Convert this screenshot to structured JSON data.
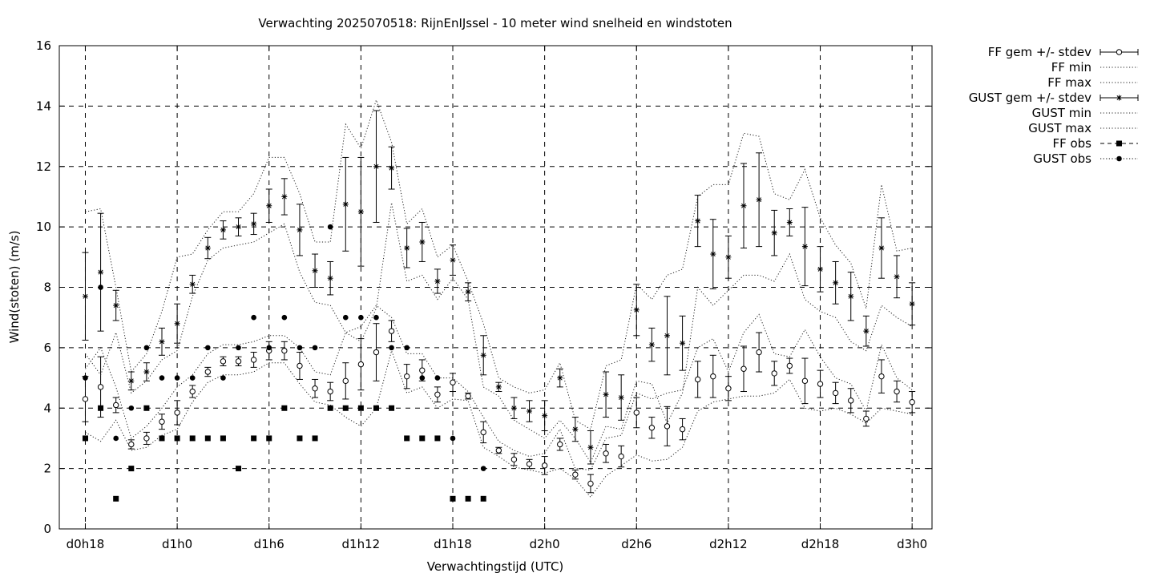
{
  "chart_data": {
    "type": "line",
    "title": "Verwachting 2025070518: RijnEnIJssel - 10 meter wind snelheid en windstoten",
    "xlabel": "Verwachtingstijd (UTC)",
    "ylabel": "Wind(stoten) (m/s)",
    "ylim": [
      0,
      16
    ],
    "yticks": [
      "0",
      "2",
      "4",
      "6",
      "8",
      "10",
      "12",
      "14",
      "16"
    ],
    "xlim": [
      -1.7,
      55.3
    ],
    "xticks": [
      {
        "x": 0,
        "label": "d0h18"
      },
      {
        "x": 6,
        "label": "d1h0"
      },
      {
        "x": 12,
        "label": "d1h6"
      },
      {
        "x": 18,
        "label": "d1h12"
      },
      {
        "x": 24,
        "label": "d1h18"
      },
      {
        "x": 30,
        "label": "d2h0"
      },
      {
        "x": 36,
        "label": "d2h6"
      },
      {
        "x": 42,
        "label": "d2h12"
      },
      {
        "x": 48,
        "label": "d2h18"
      },
      {
        "x": 54,
        "label": "d3h0"
      }
    ],
    "grid": true,
    "legend_position": "outside-right",
    "series": [
      {
        "name": "FF gem +/- stdev",
        "x": [
          0,
          1,
          2,
          3,
          4,
          5,
          6,
          7,
          8,
          9,
          10,
          11,
          12,
          13,
          14,
          15,
          16,
          17,
          18,
          19,
          20,
          21,
          22,
          23,
          24,
          25,
          26,
          27,
          28,
          29,
          30,
          31,
          32,
          33,
          34,
          35,
          36,
          37,
          38,
          39,
          40,
          41,
          42,
          43,
          44,
          45,
          46,
          47,
          48,
          49,
          50,
          51,
          52,
          53,
          54
        ],
        "y": [
          4.3,
          4.7,
          4.1,
          2.8,
          3.0,
          3.55,
          3.85,
          4.55,
          5.2,
          5.55,
          5.55,
          5.6,
          5.9,
          5.9,
          5.4,
          4.65,
          4.55,
          4.9,
          5.45,
          5.85,
          6.55,
          5.05,
          5.25,
          4.45,
          4.85,
          4.4,
          3.2,
          2.6,
          2.3,
          2.15,
          2.1,
          2.8,
          1.8,
          1.5,
          2.5,
          2.4,
          3.85,
          3.35,
          3.4,
          3.3,
          4.95,
          5.05,
          4.65,
          5.3,
          5.85,
          5.15,
          5.4,
          4.9,
          4.8,
          4.5,
          4.25,
          3.65,
          5.05,
          4.55,
          4.2
        ],
        "stdev": [
          0.75,
          1.0,
          0.25,
          0.15,
          0.2,
          0.25,
          0.4,
          0.2,
          0.15,
          0.15,
          0.15,
          0.25,
          0.3,
          0.3,
          0.45,
          0.3,
          0.3,
          0.6,
          0.85,
          0.95,
          0.35,
          0.4,
          0.35,
          0.25,
          0.3,
          0.1,
          0.35,
          0.1,
          0.2,
          0.15,
          0.3,
          0.2,
          0.15,
          0.3,
          0.3,
          0.35,
          0.5,
          0.35,
          0.65,
          0.35,
          0.6,
          0.7,
          0.4,
          0.75,
          0.65,
          0.4,
          0.25,
          0.75,
          0.45,
          0.35,
          0.4,
          0.25,
          0.55,
          0.35,
          0.35
        ],
        "marker": "open-circle"
      },
      {
        "name": "FF min",
        "x": [
          0,
          1,
          2,
          3,
          4,
          5,
          6,
          7,
          8,
          9,
          10,
          11,
          12,
          13,
          14,
          15,
          16,
          17,
          18,
          19,
          20,
          21,
          22,
          23,
          24,
          25,
          26,
          27,
          28,
          29,
          30,
          31,
          32,
          33,
          34,
          35,
          36,
          37,
          38,
          39,
          40,
          41,
          42,
          43,
          44,
          45,
          46,
          47,
          48,
          49,
          50,
          51,
          52,
          53,
          54
        ],
        "y": [
          3.2,
          2.9,
          3.6,
          2.6,
          2.7,
          3.1,
          3.3,
          4.2,
          4.85,
          5.1,
          5.1,
          5.2,
          5.5,
          5.5,
          4.8,
          4.2,
          4.1,
          3.7,
          3.4,
          4.0,
          5.9,
          4.5,
          4.7,
          4.0,
          4.3,
          4.25,
          2.7,
          2.4,
          2.05,
          1.95,
          1.85,
          2.0,
          1.65,
          1.05,
          1.75,
          2.1,
          2.45,
          2.25,
          2.3,
          2.7,
          3.9,
          4.2,
          4.3,
          4.4,
          4.4,
          4.5,
          4.95,
          4.0,
          3.9,
          4.0,
          3.8,
          3.5,
          4.0,
          3.9,
          3.8
        ],
        "style": "dotted"
      },
      {
        "name": "FF max",
        "x": [
          0,
          1,
          2,
          3,
          4,
          5,
          6,
          7,
          8,
          9,
          10,
          11,
          12,
          13,
          14,
          15,
          16,
          17,
          18,
          19,
          20,
          21,
          22,
          23,
          24,
          25,
          26,
          27,
          28,
          29,
          30,
          31,
          32,
          33,
          34,
          35,
          36,
          37,
          38,
          39,
          40,
          41,
          42,
          43,
          44,
          45,
          46,
          47,
          48,
          49,
          50,
          51,
          52,
          53,
          54
        ],
        "y": [
          5.3,
          6.0,
          4.7,
          3.0,
          3.4,
          4.0,
          4.7,
          5.1,
          5.8,
          6.1,
          6.1,
          6.2,
          6.4,
          6.4,
          6.0,
          5.2,
          5.1,
          6.5,
          6.7,
          7.4,
          7.0,
          5.8,
          5.8,
          5.0,
          5.0,
          4.55,
          3.7,
          2.9,
          2.6,
          2.4,
          2.5,
          3.3,
          2.0,
          1.95,
          3.0,
          3.1,
          4.5,
          4.3,
          4.5,
          4.6,
          6.0,
          6.3,
          5.2,
          6.5,
          7.1,
          5.8,
          5.7,
          6.6,
          5.7,
          5.0,
          4.8,
          3.9,
          6.1,
          5.0,
          4.6
        ],
        "style": "dotted"
      },
      {
        "name": "GUST gem +/- stdev",
        "x": [
          0,
          1,
          2,
          3,
          4,
          5,
          6,
          7,
          8,
          9,
          10,
          11,
          12,
          13,
          14,
          15,
          16,
          17,
          18,
          19,
          20,
          21,
          22,
          23,
          24,
          25,
          26,
          27,
          28,
          29,
          30,
          31,
          32,
          33,
          34,
          35,
          36,
          37,
          38,
          39,
          40,
          41,
          42,
          43,
          44,
          45,
          46,
          47,
          48,
          49,
          50,
          51,
          52,
          53,
          54
        ],
        "y": [
          7.7,
          8.5,
          7.4,
          4.9,
          5.2,
          6.2,
          6.8,
          8.1,
          9.3,
          9.9,
          10.0,
          10.1,
          10.7,
          11.0,
          9.9,
          8.55,
          8.3,
          10.75,
          10.5,
          12.0,
          11.95,
          9.3,
          9.5,
          8.2,
          8.9,
          7.85,
          5.75,
          4.7,
          4.0,
          3.9,
          3.75,
          5.0,
          3.3,
          2.7,
          4.45,
          4.35,
          7.25,
          6.1,
          6.4,
          6.15,
          10.2,
          9.1,
          9.0,
          10.7,
          10.9,
          9.8,
          10.15,
          9.35,
          8.6,
          8.15,
          7.7,
          6.55,
          9.3,
          8.35,
          7.45
        ],
        "stdev": [
          1.45,
          1.95,
          0.5,
          0.3,
          0.3,
          0.45,
          0.65,
          0.3,
          0.35,
          0.3,
          0.3,
          0.35,
          0.55,
          0.6,
          0.85,
          0.55,
          0.55,
          1.55,
          1.8,
          1.85,
          0.7,
          0.65,
          0.65,
          0.4,
          0.5,
          0.3,
          0.65,
          0.15,
          0.35,
          0.35,
          0.5,
          0.3,
          0.4,
          0.55,
          0.75,
          0.75,
          0.85,
          0.55,
          1.3,
          0.9,
          0.85,
          1.15,
          0.7,
          1.4,
          1.55,
          0.75,
          0.45,
          1.3,
          0.75,
          0.7,
          0.8,
          0.5,
          1.0,
          0.7,
          0.7
        ],
        "marker": "star"
      },
      {
        "name": "GUST min",
        "x": [
          0,
          1,
          2,
          3,
          4,
          5,
          6,
          7,
          8,
          9,
          10,
          11,
          12,
          13,
          14,
          15,
          16,
          17,
          18,
          19,
          20,
          21,
          22,
          23,
          24,
          25,
          26,
          27,
          28,
          29,
          30,
          31,
          32,
          33,
          34,
          35,
          36,
          37,
          38,
          39,
          40,
          41,
          42,
          43,
          44,
          45,
          46,
          47,
          48,
          49,
          50,
          51,
          52,
          53,
          54
        ],
        "y": [
          5.8,
          5.1,
          6.5,
          4.5,
          4.9,
          5.6,
          5.9,
          7.7,
          8.9,
          9.3,
          9.4,
          9.5,
          9.8,
          10.1,
          8.5,
          7.5,
          7.4,
          6.5,
          6.2,
          7.3,
          10.8,
          8.2,
          8.4,
          7.6,
          8.3,
          7.6,
          4.7,
          4.4,
          3.6,
          3.3,
          3.0,
          3.6,
          3.0,
          2.2,
          3.4,
          3.3,
          4.9,
          4.8,
          3.5,
          4.5,
          8.0,
          7.4,
          7.9,
          8.4,
          8.4,
          8.2,
          9.1,
          7.6,
          7.2,
          7.0,
          6.2,
          5.9,
          7.4,
          7.0,
          6.7
        ],
        "style": "dotted"
      },
      {
        "name": "GUST max",
        "x": [
          0,
          1,
          2,
          3,
          4,
          5,
          6,
          7,
          8,
          9,
          10,
          11,
          12,
          13,
          14,
          15,
          16,
          17,
          18,
          19,
          20,
          21,
          22,
          23,
          24,
          25,
          26,
          27,
          28,
          29,
          30,
          31,
          32,
          33,
          34,
          35,
          36,
          37,
          38,
          39,
          40,
          41,
          42,
          43,
          44,
          45,
          46,
          47,
          48,
          49,
          50,
          51,
          52,
          53,
          54
        ],
        "y": [
          10.5,
          10.6,
          8.0,
          5.2,
          5.8,
          7.2,
          9.0,
          9.1,
          9.9,
          10.5,
          10.5,
          11.1,
          12.3,
          12.3,
          11.1,
          9.5,
          9.5,
          13.4,
          12.6,
          14.2,
          12.8,
          10.1,
          10.6,
          9.0,
          9.4,
          8.2,
          6.8,
          5.0,
          4.7,
          4.5,
          4.6,
          5.5,
          3.6,
          3.3,
          5.4,
          5.6,
          8.1,
          7.6,
          8.4,
          8.6,
          11.0,
          11.4,
          11.4,
          13.1,
          13.0,
          11.1,
          10.9,
          11.9,
          10.3,
          9.4,
          8.8,
          7.3,
          11.4,
          9.2,
          9.3
        ],
        "style": "dotted"
      },
      {
        "name": "FF obs",
        "x": [
          0,
          1,
          2,
          3,
          4,
          5,
          6,
          7,
          8,
          9,
          10,
          11,
          12,
          13,
          14,
          15,
          16,
          17,
          18,
          19,
          20,
          21,
          22,
          23,
          24,
          25,
          26
        ],
        "y": [
          3,
          4,
          1,
          2,
          4,
          3,
          3,
          3,
          3,
          3,
          2,
          3,
          3,
          4,
          3,
          3,
          4,
          4,
          4,
          4,
          4,
          3,
          3,
          3,
          1,
          1,
          1
        ],
        "marker": "filled-square"
      },
      {
        "name": "GUST obs",
        "x": [
          0,
          1,
          2,
          3,
          4,
          5,
          6,
          7,
          8,
          9,
          10,
          11,
          12,
          13,
          14,
          15,
          16,
          17,
          18,
          19,
          20,
          21,
          22,
          23,
          24,
          25,
          26
        ],
        "y": [
          5,
          8,
          3,
          4,
          6,
          5,
          5,
          5,
          6,
          5,
          6,
          7,
          6,
          7,
          6,
          6,
          10,
          7,
          7,
          7,
          6,
          6,
          5,
          5,
          3,
          null,
          2
        ],
        "marker": "filled-circle"
      }
    ]
  }
}
